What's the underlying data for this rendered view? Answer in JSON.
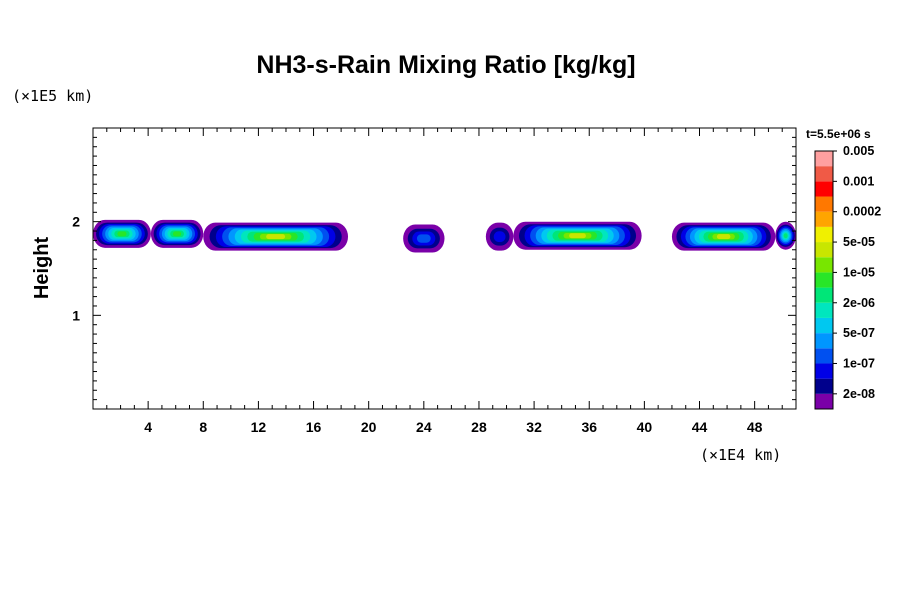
{
  "chart_data": {
    "type": "contour",
    "title": "NH3-s-Rain Mixing Ratio [kg/kg]",
    "ylabel": "Height",
    "y_scale_label": "(×1E5 km)",
    "x_scale_label": "(×1E4 km)",
    "time_label": "t=5.5e+06 s",
    "xlim": [
      0,
      51
    ],
    "ylim": [
      0,
      3
    ],
    "x_ticks": [
      "4",
      "8",
      "12",
      "16",
      "20",
      "24",
      "28",
      "32",
      "36",
      "40",
      "44",
      "48"
    ],
    "y_ticks": [
      "1",
      "2"
    ],
    "colorbar": {
      "colors": [
        "#7a00a8",
        "#00008c",
        "#0000e6",
        "#0050f0",
        "#0096ff",
        "#00c8f0",
        "#00e6be",
        "#00e678",
        "#28e628",
        "#78e600",
        "#c8e600",
        "#f0f000",
        "#ffa500",
        "#ff7800",
        "#ff0000",
        "#f05a46",
        "#ffa0a0"
      ],
      "labels": [
        "2e-08",
        "1e-07",
        "5e-07",
        "2e-06",
        "1e-05",
        "5e-05",
        "0.0002",
        "0.001",
        "0.005"
      ]
    },
    "cloud_segments": [
      {
        "x_start": 0.0,
        "x_end": 4.2,
        "y_center": 1.87,
        "peak_level": 8
      },
      {
        "x_start": 4.2,
        "x_end": 8.0,
        "y_center": 1.87,
        "peak_level": 8
      },
      {
        "x_start": 8.0,
        "x_end": 18.5,
        "y_center": 1.84,
        "peak_level": 10
      },
      {
        "x_start": 22.5,
        "x_end": 25.5,
        "y_center": 1.82,
        "peak_level": 3
      },
      {
        "x_start": 28.5,
        "x_end": 30.5,
        "y_center": 1.84,
        "peak_level": 2
      },
      {
        "x_start": 30.5,
        "x_end": 39.8,
        "y_center": 1.85,
        "peak_level": 10
      },
      {
        "x_start": 42.0,
        "x_end": 49.5,
        "y_center": 1.84,
        "peak_level": 10
      },
      {
        "x_start": 49.5,
        "x_end": 51.0,
        "y_center": 1.85,
        "peak_level": 7
      }
    ]
  }
}
